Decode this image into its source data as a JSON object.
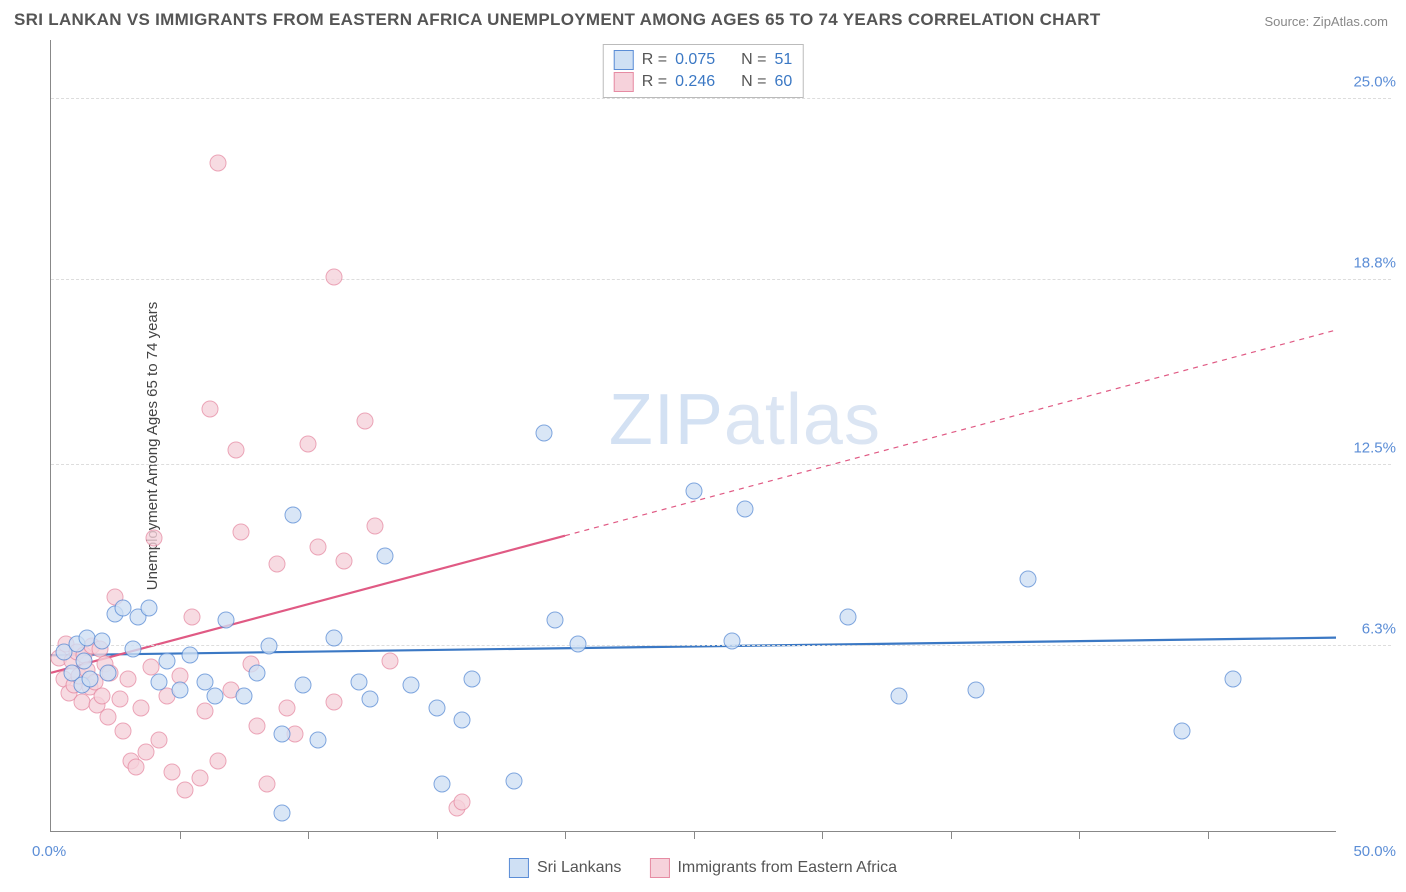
{
  "title": "SRI LANKAN VS IMMIGRANTS FROM EASTERN AFRICA UNEMPLOYMENT AMONG AGES 65 TO 74 YEARS CORRELATION CHART",
  "source": "Source: ZipAtlas.com",
  "ylabel": "Unemployment Among Ages 65 to 74 years",
  "watermark_a": "ZIP",
  "watermark_b": "atlas",
  "chart": {
    "type": "scatter",
    "xlim": [
      0,
      50
    ],
    "ylim": [
      0,
      27
    ],
    "background_color": "#ffffff",
    "grid_color": "#dddddd",
    "grid_dash": "4 4",
    "axis_color": "#888888",
    "x_ticks": [
      5,
      10,
      15,
      20,
      25,
      30,
      35,
      40,
      45
    ],
    "y_gridlines": [
      6.3,
      12.5,
      18.8,
      25.0
    ],
    "y_tick_labels": [
      "6.3%",
      "12.5%",
      "18.8%",
      "25.0%"
    ],
    "y_tick_color": "#5b8dd6",
    "x_min_label": "0.0%",
    "x_max_label": "50.0%",
    "x_label_color": "#5b8dd6",
    "marker_radius": 8.5,
    "marker_opacity": 0.78,
    "line_width_solid": 2.2,
    "line_width_dash": 1.2
  },
  "series": [
    {
      "name": "Sri Lankans",
      "fill": "#cfe0f4",
      "stroke": "#5b8dd6",
      "line_color": "#3b78c4",
      "r_label": "R =",
      "r_value": "0.075",
      "n_label": "N =",
      "n_value": "51",
      "trend": {
        "x1_pct": 0,
        "y1_val": 6.0,
        "x2_pct": 50,
        "y2_val": 6.6,
        "solid_to_pct": 50
      },
      "points": [
        [
          0.5,
          6.1
        ],
        [
          0.8,
          5.4
        ],
        [
          1.0,
          6.4
        ],
        [
          1.2,
          5.0
        ],
        [
          1.3,
          5.8
        ],
        [
          1.4,
          6.6
        ],
        [
          1.5,
          5.2
        ],
        [
          2.0,
          6.5
        ],
        [
          2.2,
          5.4
        ],
        [
          2.5,
          7.4
        ],
        [
          2.8,
          7.6
        ],
        [
          3.2,
          6.2
        ],
        [
          3.4,
          7.3
        ],
        [
          3.8,
          7.6
        ],
        [
          4.2,
          5.1
        ],
        [
          4.5,
          5.8
        ],
        [
          5.0,
          4.8
        ],
        [
          5.4,
          6.0
        ],
        [
          6.0,
          5.1
        ],
        [
          6.4,
          4.6
        ],
        [
          6.8,
          7.2
        ],
        [
          7.5,
          4.6
        ],
        [
          8.0,
          5.4
        ],
        [
          8.5,
          6.3
        ],
        [
          9.0,
          3.3
        ],
        [
          9.0,
          0.6
        ],
        [
          9.4,
          10.8
        ],
        [
          9.8,
          5.0
        ],
        [
          10.4,
          3.1
        ],
        [
          11.0,
          6.6
        ],
        [
          12.0,
          5.1
        ],
        [
          12.4,
          4.5
        ],
        [
          13.0,
          9.4
        ],
        [
          14.0,
          5.0
        ],
        [
          15.0,
          4.2
        ],
        [
          15.2,
          1.6
        ],
        [
          16.0,
          3.8
        ],
        [
          16.4,
          5.2
        ],
        [
          18.0,
          1.7
        ],
        [
          19.2,
          13.6
        ],
        [
          19.6,
          7.2
        ],
        [
          20.5,
          6.4
        ],
        [
          25.0,
          11.6
        ],
        [
          26.5,
          6.5
        ],
        [
          27.0,
          11.0
        ],
        [
          31.0,
          7.3
        ],
        [
          33.0,
          4.6
        ],
        [
          36.0,
          4.8
        ],
        [
          38.0,
          8.6
        ],
        [
          44.0,
          3.4
        ],
        [
          46.0,
          5.2
        ]
      ]
    },
    {
      "name": "Immigrants from Eastern Africa",
      "fill": "#f6d2db",
      "stroke": "#e68ba3",
      "line_color": "#e05a84",
      "r_label": "R =",
      "r_value": "0.246",
      "n_label": "N =",
      "n_value": "60",
      "trend": {
        "x1_pct": 0,
        "y1_val": 5.4,
        "x2_pct": 50,
        "y2_val": 17.1,
        "solid_to_pct": 20
      },
      "points": [
        [
          0.3,
          5.9
        ],
        [
          0.5,
          5.2
        ],
        [
          0.6,
          6.4
        ],
        [
          0.7,
          4.7
        ],
        [
          0.8,
          5.8
        ],
        [
          0.9,
          5.0
        ],
        [
          1.0,
          6.1
        ],
        [
          1.1,
          5.3
        ],
        [
          1.2,
          4.4
        ],
        [
          1.3,
          6.0
        ],
        [
          1.4,
          5.5
        ],
        [
          1.5,
          4.9
        ],
        [
          1.6,
          6.3
        ],
        [
          1.7,
          5.1
        ],
        [
          1.8,
          4.3
        ],
        [
          1.9,
          6.2
        ],
        [
          2.0,
          4.6
        ],
        [
          2.1,
          5.7
        ],
        [
          2.2,
          3.9
        ],
        [
          2.3,
          5.4
        ],
        [
          2.5,
          8.0
        ],
        [
          2.7,
          4.5
        ],
        [
          2.8,
          3.4
        ],
        [
          3.0,
          5.2
        ],
        [
          3.1,
          2.4
        ],
        [
          3.3,
          2.2
        ],
        [
          3.5,
          4.2
        ],
        [
          3.7,
          2.7
        ],
        [
          3.9,
          5.6
        ],
        [
          4.0,
          10.0
        ],
        [
          4.2,
          3.1
        ],
        [
          4.5,
          4.6
        ],
        [
          4.7,
          2.0
        ],
        [
          5.0,
          5.3
        ],
        [
          5.2,
          1.4
        ],
        [
          5.5,
          7.3
        ],
        [
          5.8,
          1.8
        ],
        [
          6.0,
          4.1
        ],
        [
          6.2,
          14.4
        ],
        [
          6.5,
          2.4
        ],
        [
          6.5,
          22.8
        ],
        [
          7.0,
          4.8
        ],
        [
          7.2,
          13.0
        ],
        [
          7.4,
          10.2
        ],
        [
          7.8,
          5.7
        ],
        [
          8.0,
          3.6
        ],
        [
          8.4,
          1.6
        ],
        [
          8.8,
          9.1
        ],
        [
          9.2,
          4.2
        ],
        [
          9.5,
          3.3
        ],
        [
          10.0,
          13.2
        ],
        [
          10.4,
          9.7
        ],
        [
          11.0,
          4.4
        ],
        [
          11.0,
          18.9
        ],
        [
          11.4,
          9.2
        ],
        [
          12.2,
          14.0
        ],
        [
          12.6,
          10.4
        ],
        [
          13.2,
          5.8
        ],
        [
          15.8,
          0.8
        ],
        [
          16.0,
          1.0
        ]
      ]
    }
  ],
  "legend_top": {
    "value_color": "#3b78c4"
  },
  "legend_bottom": {
    "items": [
      "Sri Lankans",
      "Immigrants from Eastern Africa"
    ]
  }
}
